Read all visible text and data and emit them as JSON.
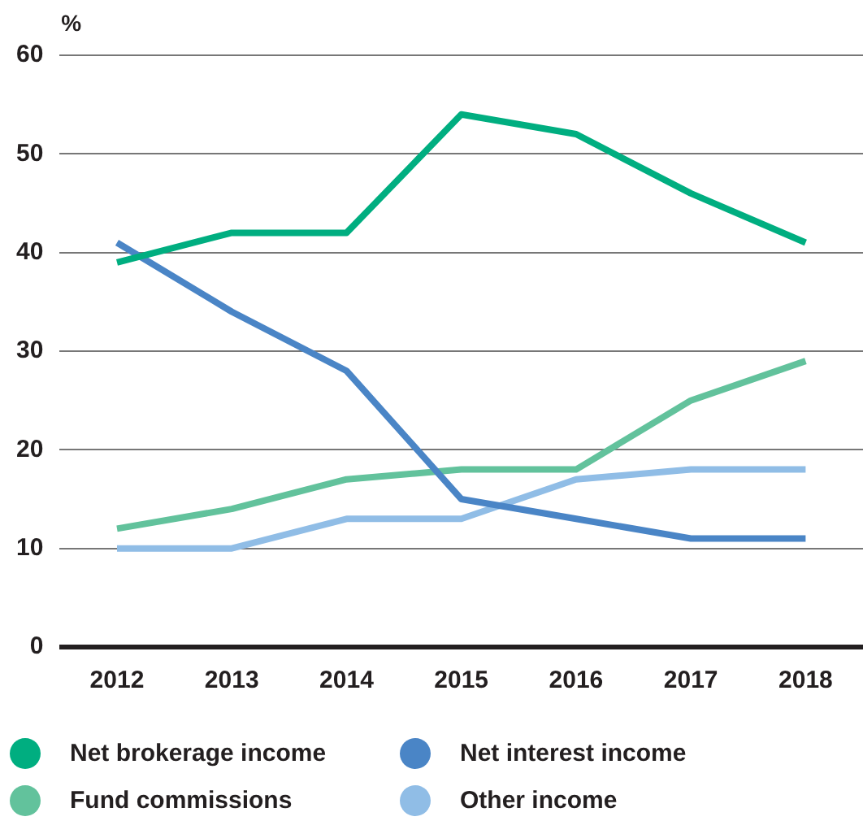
{
  "chart_data": {
    "type": "line",
    "ylabel": "%",
    "categories": [
      "2012",
      "2013",
      "2014",
      "2015",
      "2016",
      "2017",
      "2018"
    ],
    "series": [
      {
        "name": "Net brokerage income",
        "color": "#00ae80",
        "values": [
          39,
          42,
          42,
          54,
          52,
          46,
          41
        ]
      },
      {
        "name": "Net interest income",
        "color": "#4a85c6",
        "values": [
          41,
          34,
          28,
          15,
          13,
          11,
          11
        ]
      },
      {
        "name": "Fund commissions",
        "color": "#62c29c",
        "values": [
          12,
          14,
          17,
          18,
          18,
          25,
          29
        ]
      },
      {
        "name": "Other income",
        "color": "#90bde6",
        "values": [
          10,
          10,
          13,
          13,
          17,
          18,
          18
        ]
      }
    ],
    "ylim": [
      0,
      60
    ],
    "yticks": [
      0,
      10,
      20,
      30,
      40,
      50,
      60
    ],
    "grid": "y",
    "legend": "bottom",
    "marker": "none",
    "line_style": "solid"
  }
}
